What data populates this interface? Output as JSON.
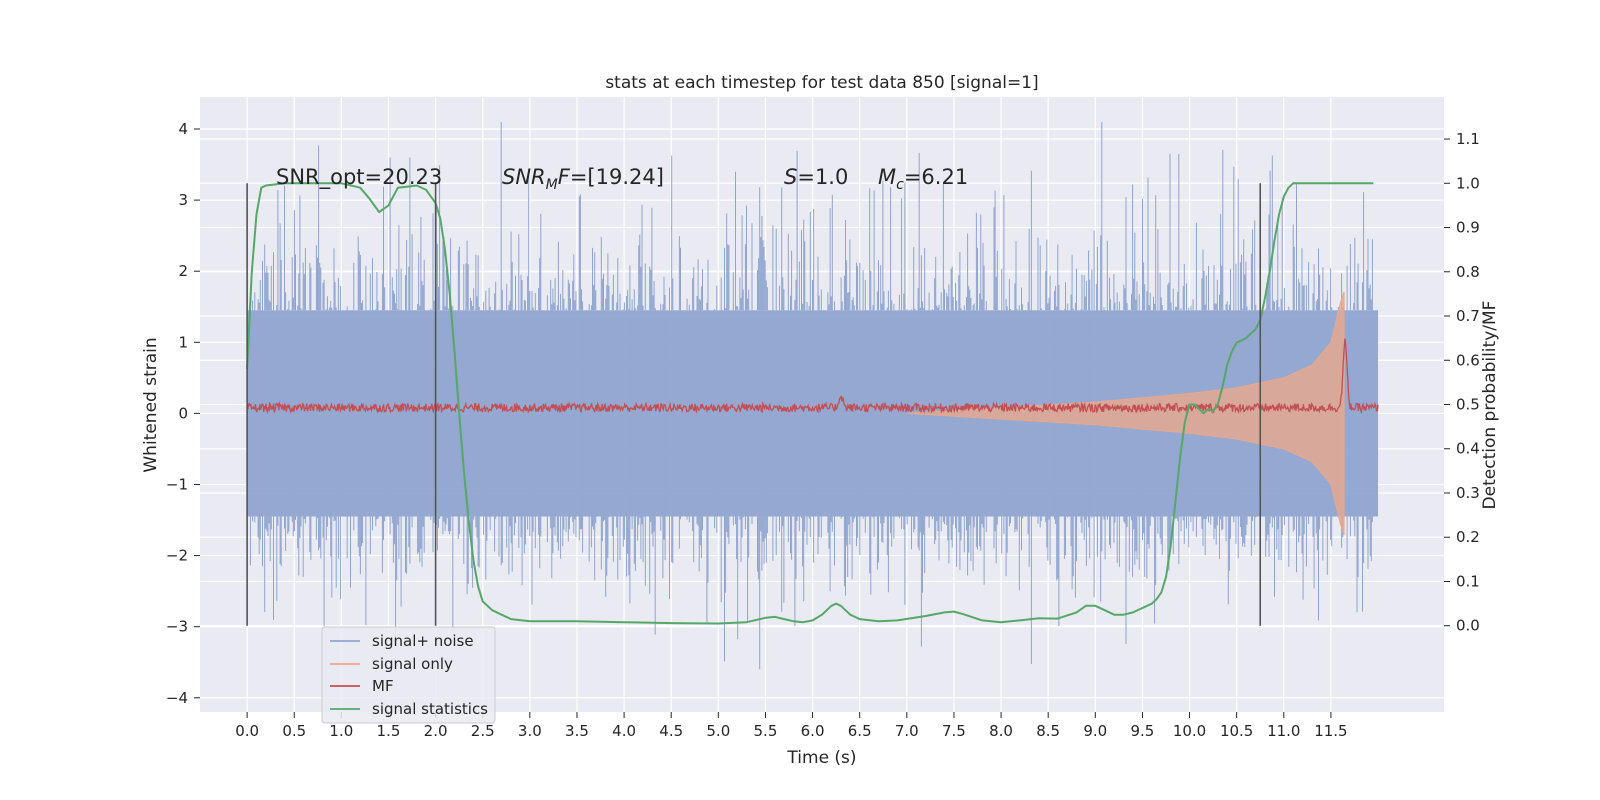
{
  "chart_data": {
    "type": "line",
    "title": "stats at each timestep for test data 850 [signal=1]",
    "xlabel": "Time (s)",
    "ylabel": "Whitened strain",
    "y2label": "Detection probability/MF",
    "xlim": [
      -0.5,
      12.7
    ],
    "ylim": [
      -4.2,
      4.45
    ],
    "y2lim": [
      -0.195,
      1.195
    ],
    "x_ticks": [
      0.0,
      0.5,
      1.0,
      1.5,
      2.0,
      2.5,
      3.0,
      3.5,
      4.0,
      4.5,
      5.0,
      5.5,
      6.0,
      6.5,
      7.0,
      7.5,
      8.0,
      8.5,
      9.0,
      9.5,
      10.0,
      10.5,
      11.0,
      11.5
    ],
    "x_tick_labels": [
      "0.0",
      "0.5",
      "1.0",
      "1.5",
      "2.0",
      "2.5",
      "3.0",
      "3.5",
      "4.0",
      "4.5",
      "5.0",
      "5.5",
      "6.0",
      "6.5",
      "7.0",
      "7.5",
      "8.0",
      "8.5",
      "9.0",
      "9.5",
      "10.0",
      "10.5",
      "11.0",
      "11.5"
    ],
    "y_ticks": [
      -4,
      -3,
      -2,
      -1,
      0,
      1,
      2,
      3,
      4
    ],
    "y_tick_labels": [
      "−4",
      "−3",
      "−2",
      "−1",
      "0",
      "1",
      "2",
      "3",
      "4"
    ],
    "y2_ticks": [
      0.0,
      0.1,
      0.2,
      0.3,
      0.4,
      0.5,
      0.6,
      0.7,
      0.8,
      0.9,
      1.0,
      1.1
    ],
    "y2_tick_labels": [
      "0.0",
      "0.1",
      "0.2",
      "0.3",
      "0.4",
      "0.5",
      "0.6",
      "0.7",
      "0.8",
      "0.9",
      "1.0",
      "1.1"
    ],
    "grid": true,
    "legend_position": "lower-left",
    "background_color": "#eaeaf2",
    "vertical_lines_x": [
      0.0,
      2.0,
      10.75
    ],
    "annotations": [
      "SNR_opt=20.23",
      "[19.24]",
      "=1.0",
      "=6.21"
    ],
    "annotation_symbols": [
      "SNR",
      "M",
      "F=",
      "S",
      "M",
      "c"
    ],
    "series": [
      {
        "name": "signal+ noise",
        "color": "#8fa4cf",
        "axis": "left",
        "x_range": [
          0.0,
          12.0
        ],
        "envelope_amplitude": 1.45,
        "peak_range": [
          -3.6,
          4.1
        ]
      },
      {
        "name": "signal only",
        "color": "#e8a88c",
        "axis": "left",
        "x_range": [
          7.0,
          11.65
        ],
        "envelope_at": {
          "x": [
            7.0,
            8.0,
            9.0,
            10.0,
            10.5,
            11.0,
            11.3,
            11.5,
            11.6,
            11.65
          ],
          "amplitude": [
            0.0,
            0.08,
            0.16,
            0.28,
            0.36,
            0.5,
            0.68,
            1.0,
            1.55,
            1.75
          ]
        }
      },
      {
        "name": "MF",
        "color": "#c44e52",
        "axis": "left",
        "x_range": [
          0.0,
          12.0
        ],
        "baseline": 0.08,
        "noise_amplitude": 0.06,
        "peaks": [
          {
            "x": 6.3,
            "y": 0.25
          },
          {
            "x": 11.65,
            "y": 1.0
          }
        ]
      },
      {
        "name": "signal statistics",
        "color": "#55a868",
        "axis": "right",
        "x": [
          0.0,
          0.05,
          0.1,
          0.15,
          0.2,
          0.4,
          0.8,
          1.0,
          1.2,
          1.3,
          1.4,
          1.5,
          1.6,
          1.8,
          1.9,
          2.0,
          2.05,
          2.1,
          2.15,
          2.2,
          2.25,
          2.3,
          2.35,
          2.4,
          2.45,
          2.5,
          2.6,
          2.7,
          2.8,
          3.0,
          3.5,
          4.0,
          4.5,
          5.0,
          5.3,
          5.5,
          5.6,
          5.7,
          5.8,
          5.9,
          6.0,
          6.1,
          6.2,
          6.25,
          6.3,
          6.4,
          6.5,
          6.7,
          6.9,
          7.2,
          7.4,
          7.5,
          7.6,
          7.8,
          8.0,
          8.2,
          8.4,
          8.6,
          8.8,
          8.9,
          9.0,
          9.1,
          9.2,
          9.3,
          9.4,
          9.5,
          9.6,
          9.65,
          9.7,
          9.75,
          9.8,
          9.85,
          9.9,
          9.95,
          10.0,
          10.05,
          10.1,
          10.15,
          10.2,
          10.25,
          10.3,
          10.35,
          10.4,
          10.45,
          10.5,
          10.6,
          10.7,
          10.75,
          10.8,
          10.85,
          10.9,
          10.95,
          11.0,
          11.05,
          11.1,
          11.2,
          11.5,
          11.7,
          11.95
        ],
        "values": [
          0.58,
          0.8,
          0.93,
          0.99,
          0.995,
          1.0,
          1.0,
          1.0,
          0.99,
          0.965,
          0.935,
          0.95,
          0.99,
          0.995,
          0.985,
          0.955,
          0.92,
          0.85,
          0.75,
          0.62,
          0.48,
          0.35,
          0.24,
          0.15,
          0.09,
          0.055,
          0.035,
          0.025,
          0.015,
          0.01,
          0.01,
          0.008,
          0.006,
          0.005,
          0.008,
          0.018,
          0.02,
          0.015,
          0.01,
          0.008,
          0.012,
          0.025,
          0.045,
          0.05,
          0.045,
          0.025,
          0.015,
          0.01,
          0.012,
          0.022,
          0.03,
          0.032,
          0.026,
          0.012,
          0.008,
          0.012,
          0.017,
          0.016,
          0.03,
          0.045,
          0.045,
          0.035,
          0.025,
          0.025,
          0.03,
          0.04,
          0.05,
          0.06,
          0.075,
          0.11,
          0.18,
          0.28,
          0.38,
          0.46,
          0.5,
          0.5,
          0.49,
          0.48,
          0.49,
          0.485,
          0.5,
          0.54,
          0.59,
          0.62,
          0.64,
          0.65,
          0.67,
          0.69,
          0.74,
          0.8,
          0.87,
          0.93,
          0.97,
          0.99,
          1.0,
          1.0,
          1.0,
          1.0,
          1.0
        ]
      }
    ]
  }
}
